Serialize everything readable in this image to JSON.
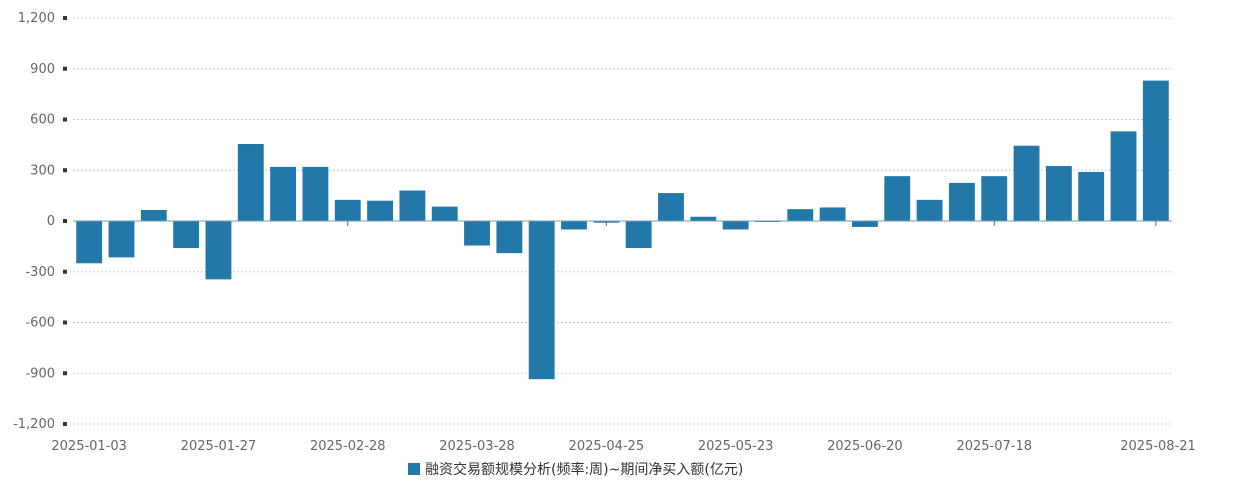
{
  "chart_data": {
    "type": "bar",
    "y_ticks": [
      "1,200",
      "900",
      "600",
      "300",
      "0",
      "-300",
      "-600",
      "-900",
      "-1,200"
    ],
    "ylim": [
      -1200,
      1200
    ],
    "y_tick_values": [
      1200,
      900,
      600,
      300,
      0,
      -300,
      -600,
      -900,
      -1200
    ],
    "x_tick_labels": [
      {
        "label": "2025-01-03",
        "index": 0
      },
      {
        "label": "2025-01-27",
        "index": 4
      },
      {
        "label": "2025-02-28",
        "index": 8
      },
      {
        "label": "2025-03-28",
        "index": 12
      },
      {
        "label": "2025-04-25",
        "index": 16
      },
      {
        "label": "2025-05-23",
        "index": 20
      },
      {
        "label": "2025-06-20",
        "index": 24
      },
      {
        "label": "2025-07-18",
        "index": 28
      },
      {
        "label": "2025-08-21",
        "index": 33
      }
    ],
    "series": [
      {
        "name": "融资交易额规模分析(频率:周)~期间净买入额(亿元)",
        "color": "#2278a8",
        "values": [
          -250,
          -215,
          65,
          -160,
          -345,
          455,
          320,
          320,
          125,
          120,
          180,
          85,
          -145,
          -190,
          -935,
          -50,
          -10,
          -160,
          165,
          25,
          -50,
          -5,
          70,
          80,
          -35,
          265,
          125,
          225,
          265,
          445,
          325,
          290,
          530,
          830
        ]
      }
    ],
    "grid": true,
    "legend_position": "bottom"
  }
}
